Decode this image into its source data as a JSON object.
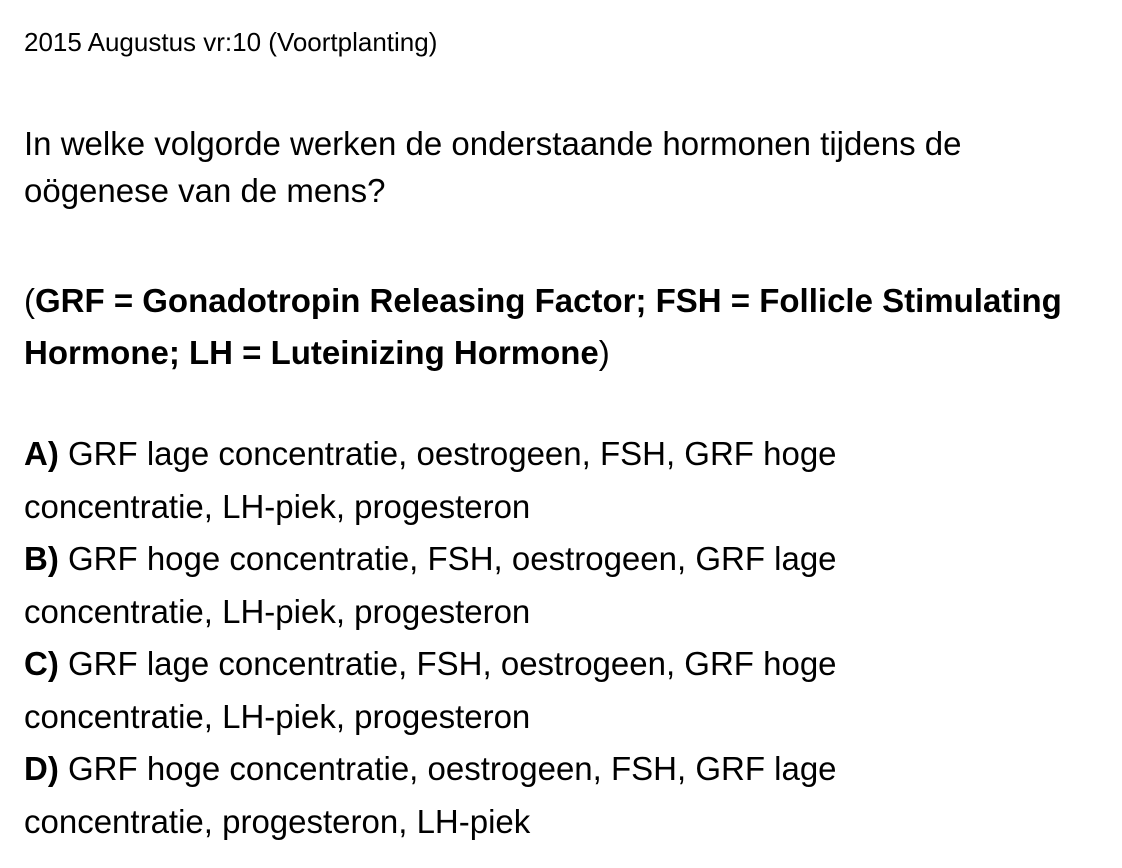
{
  "header": {
    "title": "2015 Augustus vr:10 (Voortplanting)"
  },
  "question": {
    "text": "In welke volgorde werken de onderstaande hormonen tijdens de oögenese van de mens?"
  },
  "definitions": {
    "open": "(",
    "text": "GRF = Gonadotropin Releasing Factor; FSH = Follicle Stimulating Hormone; LH = Luteinizing Hormone",
    "close": ")"
  },
  "options": [
    {
      "letter": "A)",
      "text": "GRF lage concentratie, oestrogeen, FSH, GRF hoge concentratie, LH-piek, progesteron"
    },
    {
      "letter": "B)",
      "text": "GRF hoge concentratie, FSH, oestrogeen, GRF lage concentratie, LH-piek, progesteron"
    },
    {
      "letter": "C)",
      "text": "GRF lage concentratie, FSH, oestrogeen, GRF hoge concentratie, LH-piek, progesteron"
    },
    {
      "letter": "D)",
      "text": "GRF hoge concentratie, oestrogeen, FSH, GRF lage concentratie, progesteron, LH-piek"
    }
  ]
}
